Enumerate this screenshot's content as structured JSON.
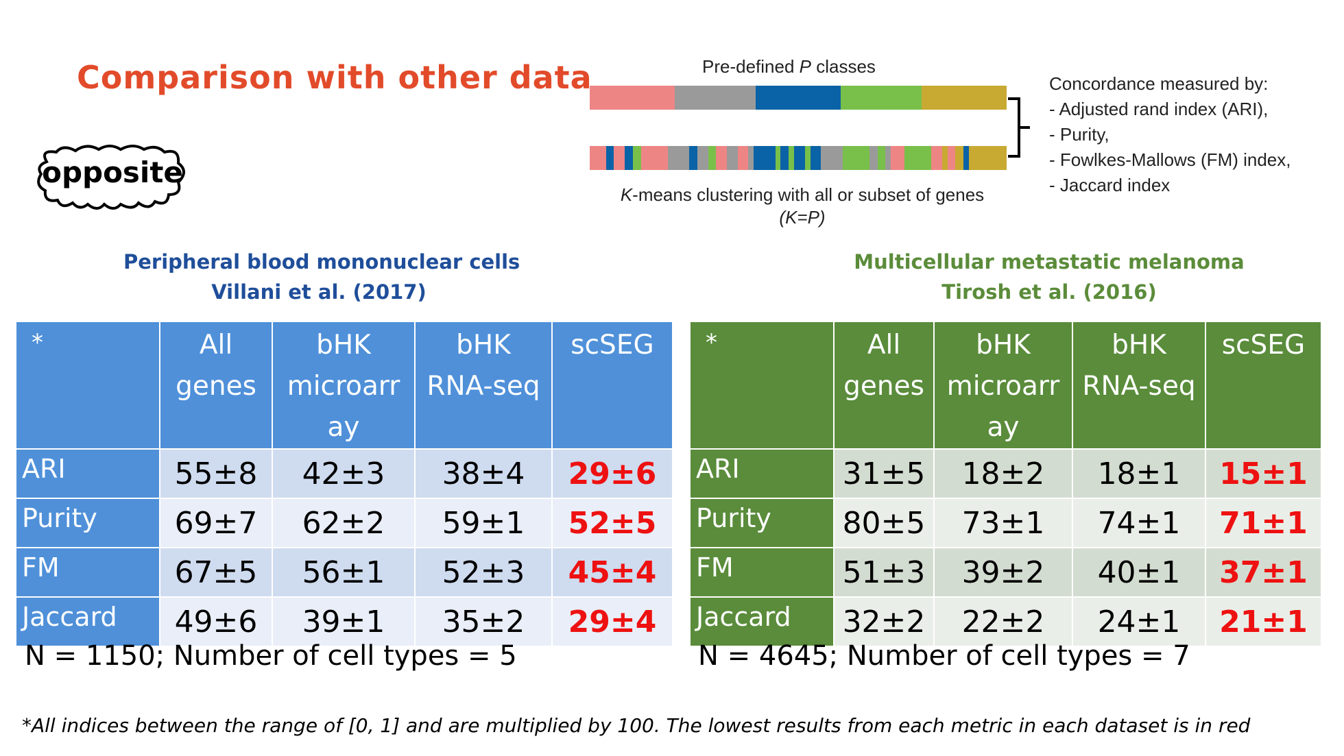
{
  "title": "Comparison with other data",
  "logo_text": "opposite",
  "diagram": {
    "top_label": "Pre-defined P classes",
    "bottom_label_line1": "K-means clustering with all or subset of genes",
    "bottom_label_line2": "(K=P)",
    "concordance_lines": [
      "Concordance measured by:",
      "- Adjusted rand index (ARI),",
      "- Purity,",
      "- Fowlkes-Mallows (FM) index,",
      "- Jaccard index"
    ],
    "class_colors": [
      "#ee8585",
      "#9a9a9a",
      "#0a63a6",
      "#78c04a",
      "#c8aa32"
    ],
    "top_segments": [
      {
        "color": "#ee8585",
        "weight": 20
      },
      {
        "color": "#9a9a9a",
        "weight": 19
      },
      {
        "color": "#0a63a6",
        "weight": 20
      },
      {
        "color": "#78c04a",
        "weight": 19
      },
      {
        "color": "#c8aa32",
        "weight": 20
      }
    ],
    "bottom_segments": [
      {
        "color": "#ee8585",
        "weight": 3
      },
      {
        "color": "#0a63a6",
        "weight": 1.5
      },
      {
        "color": "#ee8585",
        "weight": 2
      },
      {
        "color": "#0a63a6",
        "weight": 1.5
      },
      {
        "color": "#78c04a",
        "weight": 1.5
      },
      {
        "color": "#ee8585",
        "weight": 5
      },
      {
        "color": "#9a9a9a",
        "weight": 4
      },
      {
        "color": "#0a63a6",
        "weight": 1.5
      },
      {
        "color": "#9a9a9a",
        "weight": 2
      },
      {
        "color": "#78c04a",
        "weight": 1.5
      },
      {
        "color": "#ee8585",
        "weight": 2
      },
      {
        "color": "#9a9a9a",
        "weight": 2
      },
      {
        "color": "#ee8585",
        "weight": 2
      },
      {
        "color": "#9a9a9a",
        "weight": 1
      },
      {
        "color": "#0a63a6",
        "weight": 4
      },
      {
        "color": "#78c04a",
        "weight": 1
      },
      {
        "color": "#0a63a6",
        "weight": 1.5
      },
      {
        "color": "#78c04a",
        "weight": 1
      },
      {
        "color": "#0a63a6",
        "weight": 2
      },
      {
        "color": "#78c04a",
        "weight": 1
      },
      {
        "color": "#0a63a6",
        "weight": 2
      },
      {
        "color": "#9a9a9a",
        "weight": 4
      },
      {
        "color": "#78c04a",
        "weight": 5
      },
      {
        "color": "#9a9a9a",
        "weight": 1.5
      },
      {
        "color": "#78c04a",
        "weight": 1.5
      },
      {
        "color": "#9a9a9a",
        "weight": 1
      },
      {
        "color": "#ee8585",
        "weight": 2.5
      },
      {
        "color": "#78c04a",
        "weight": 5
      },
      {
        "color": "#ee8585",
        "weight": 2
      },
      {
        "color": "#c8aa32",
        "weight": 1
      },
      {
        "color": "#ee8585",
        "weight": 1.5
      },
      {
        "color": "#c8aa32",
        "weight": 1.5
      },
      {
        "color": "#0a63a6",
        "weight": 1
      },
      {
        "color": "#c8aa32",
        "weight": 7
      }
    ]
  },
  "left": {
    "heading_line1": "Peripheral blood mononuclear cells",
    "heading_line2": "Villani et al. (2017)",
    "heading_color": "#1f4e9a",
    "columns": [
      "*",
      "All genes",
      "bHK microarray",
      "bHK RNA-seq",
      "scSEG"
    ],
    "col1_line1": "All",
    "col1_line2": "genes",
    "col2_line1": "bHK",
    "col2_line2": "microarr",
    "col2_line3": "ay",
    "col3_line1": "bHK",
    "col3_line2": "RNA-seq",
    "rows": [
      {
        "label": "ARI",
        "values": [
          "55±8",
          "42±3",
          "38±4",
          "29±6"
        ]
      },
      {
        "label": "Purity",
        "values": [
          "69±7",
          "62±2",
          "59±1",
          "52±5"
        ]
      },
      {
        "label": "FM",
        "values": [
          "67±5",
          "56±1",
          "52±3",
          "45±4"
        ]
      },
      {
        "label": "Jaccard",
        "values": [
          "49±6",
          "39±1",
          "35±2",
          "29±4"
        ]
      }
    ],
    "summary": "N = 1150; Number of cell types = 5"
  },
  "right": {
    "heading_line1": "Multicellular metastatic melanoma",
    "heading_line2": "Tirosh et al. (2016)",
    "heading_color": "#5b8c3a",
    "columns": [
      "*",
      "All genes",
      "bHK microarray",
      "bHK RNA-seq",
      "scSEG"
    ],
    "col1_line1": "All",
    "col1_line2": "genes",
    "col2_line1": "bHK",
    "col2_line2": "microarr",
    "col2_line3": "ay",
    "col3_line1": "bHK",
    "col3_line2": "RNA-seq",
    "rows": [
      {
        "label": "ARI",
        "values": [
          "31±5",
          "18±2",
          "18±1",
          "15±1"
        ]
      },
      {
        "label": "Purity",
        "values": [
          "80±5",
          "73±1",
          "74±1",
          "71±1"
        ]
      },
      {
        "label": "FM",
        "values": [
          "51±3",
          "39±2",
          "40±1",
          "37±1"
        ]
      },
      {
        "label": "Jaccard",
        "values": [
          "32±2",
          "22±2",
          "24±1",
          "21±1"
        ]
      }
    ],
    "summary": "N = 4645; Number of cell types = 7"
  },
  "footnote": "*All indices between the range of [0, 1] and are multiplied by 100. The lowest results from each metric in each dataset is in red"
}
